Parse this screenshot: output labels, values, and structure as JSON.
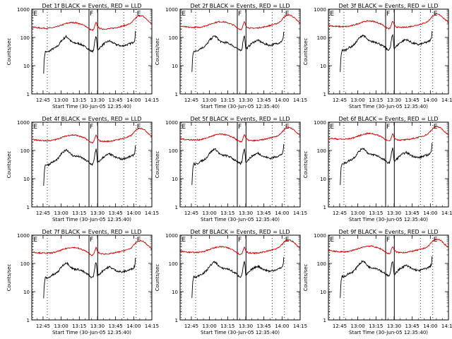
{
  "panels": [
    {
      "title": "Det 1f BLACK = Events, RED = LLD"
    },
    {
      "title": "Det 2f BLACK = Events, RED = LLD"
    },
    {
      "title": "Det 3f BLACK = Events, RED = LLD"
    },
    {
      "title": "Det 4f BLACK = Events, RED = LLD"
    },
    {
      "title": "Det 5f BLACK = Events, RED = LLD"
    },
    {
      "title": "Det 6f BLACK = Events, RED = LLD"
    },
    {
      "title": "Det 7f BLACK = Events, RED = LLD"
    },
    {
      "title": "Det 8f BLACK = Events, RED = LLD"
    },
    {
      "title": "Det 9f BLACK = Events, RED = LLD"
    }
  ],
  "chart_data": {
    "type": "line",
    "layout": "3x3 grid",
    "xlabel": "Start Time (30-Jun-05 12:35:40)",
    "ylabel": "Counts/sec",
    "x_tick_labels": [
      "12:45",
      "13:00",
      "13:15",
      "13:30",
      "13:45",
      "14:00",
      "14:15"
    ],
    "x_tick_minutes": [
      45,
      60,
      75,
      90,
      105,
      120,
      135
    ],
    "xlim_minutes": [
      35.67,
      135
    ],
    "y_tick_labels": [
      "1",
      "10",
      "100",
      "1000"
    ],
    "ylim": [
      1,
      1000
    ],
    "yscale": "log",
    "markers": [
      {
        "label": "E",
        "minute": 36.5,
        "style": "dotted"
      },
      {
        "label": "",
        "minute": 48.5,
        "style": "dotted"
      },
      {
        "label": "F",
        "minute": 83.0,
        "style": "solid"
      },
      {
        "label": "",
        "minute": 90.2,
        "style": "solid"
      },
      {
        "label": "",
        "minute": 111.8,
        "style": "dotted"
      },
      {
        "label": "E",
        "minute": 122.0,
        "style": "dotted"
      }
    ],
    "series": [
      {
        "name": "Events",
        "color": "#000000",
        "x": [
          45.5,
          46,
          47,
          48,
          50,
          52,
          55,
          58,
          60,
          62,
          64,
          66,
          68,
          70,
          73,
          75,
          78,
          80,
          82,
          84,
          86,
          87,
          88,
          89,
          90,
          92,
          95,
          98,
          100,
          103,
          105,
          108,
          110,
          112,
          115,
          118,
          120,
          121,
          121.5
        ],
        "values": [
          6,
          20,
          35,
          32,
          34,
          40,
          45,
          58,
          80,
          95,
          115,
          100,
          78,
          68,
          66,
          64,
          56,
          48,
          44,
          36,
          34,
          42,
          90,
          120,
          38,
          46,
          62,
          74,
          80,
          68,
          60,
          56,
          52,
          55,
          60,
          66,
          75,
          90,
          180
        ]
      },
      {
        "name": "LLD",
        "color": "#d00000",
        "x": [
          36,
          40,
          44,
          48,
          52,
          56,
          60,
          64,
          68,
          72,
          76,
          80,
          82,
          84,
          86,
          87,
          88,
          89,
          90,
          92,
          95,
          100,
          105,
          110,
          115,
          118,
          120,
          122,
          124,
          126,
          128,
          130,
          132,
          134,
          135
        ],
        "values": [
          260,
          245,
          238,
          235,
          240,
          262,
          300,
          345,
          375,
          370,
          330,
          285,
          245,
          212,
          200,
          215,
          300,
          380,
          270,
          230,
          220,
          225,
          245,
          275,
          315,
          360,
          450,
          560,
          640,
          650,
          610,
          520,
          430,
          360,
          320
        ]
      }
    ]
  },
  "axes": {
    "ylabel": "Counts/sec",
    "xlabel": "Start Time (30-Jun-05 12:35:40)",
    "x_ticks": [
      "12:45",
      "13:00",
      "13:15",
      "13:30",
      "13:45",
      "14:00",
      "14:15"
    ],
    "y_ticks": [
      "1",
      "10",
      "100",
      "1000"
    ]
  }
}
